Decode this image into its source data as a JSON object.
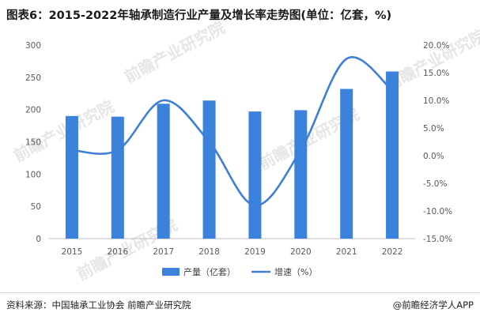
{
  "title": "图表6：2015-2022年轴承制造行业产量及增长率走势图(单位：亿套，%)",
  "source": "资料来源：中国轴承工业协会 前瞻产业研究院",
  "brand": "@前瞻经济学人APP",
  "watermark": "前瞻产业研究院",
  "colors": {
    "bar": "#3a82dc",
    "line": "#3d7fd6",
    "axis": "#bfbfbf",
    "tick": "#595959"
  },
  "chart_data": {
    "type": "bar",
    "categories": [
      "2015",
      "2016",
      "2017",
      "2018",
      "2019",
      "2020",
      "2021",
      "2022"
    ],
    "series": [
      {
        "name": "产量（亿套）",
        "type": "bar",
        "axis": "left",
        "values": [
          190,
          189,
          209,
          214,
          197,
          199,
          232,
          259
        ]
      },
      {
        "name": "增速（%）",
        "type": "line",
        "axis": "right",
        "values": [
          1.0,
          1.0,
          10.0,
          2.5,
          -9.0,
          1.0,
          17.5,
          11.8
        ]
      }
    ],
    "left_axis": {
      "min": 0,
      "max": 300,
      "ticks": [
        "0",
        "50",
        "100",
        "150",
        "200",
        "250",
        "300"
      ]
    },
    "right_axis": {
      "min": -15,
      "max": 20,
      "ticks": [
        "-15.0%",
        "-10.0%",
        "-5.0%",
        "0.0%",
        "5.0%",
        "10.0%",
        "15.0%",
        "20.0%"
      ]
    },
    "legend_position": "bottom",
    "grid": false
  }
}
